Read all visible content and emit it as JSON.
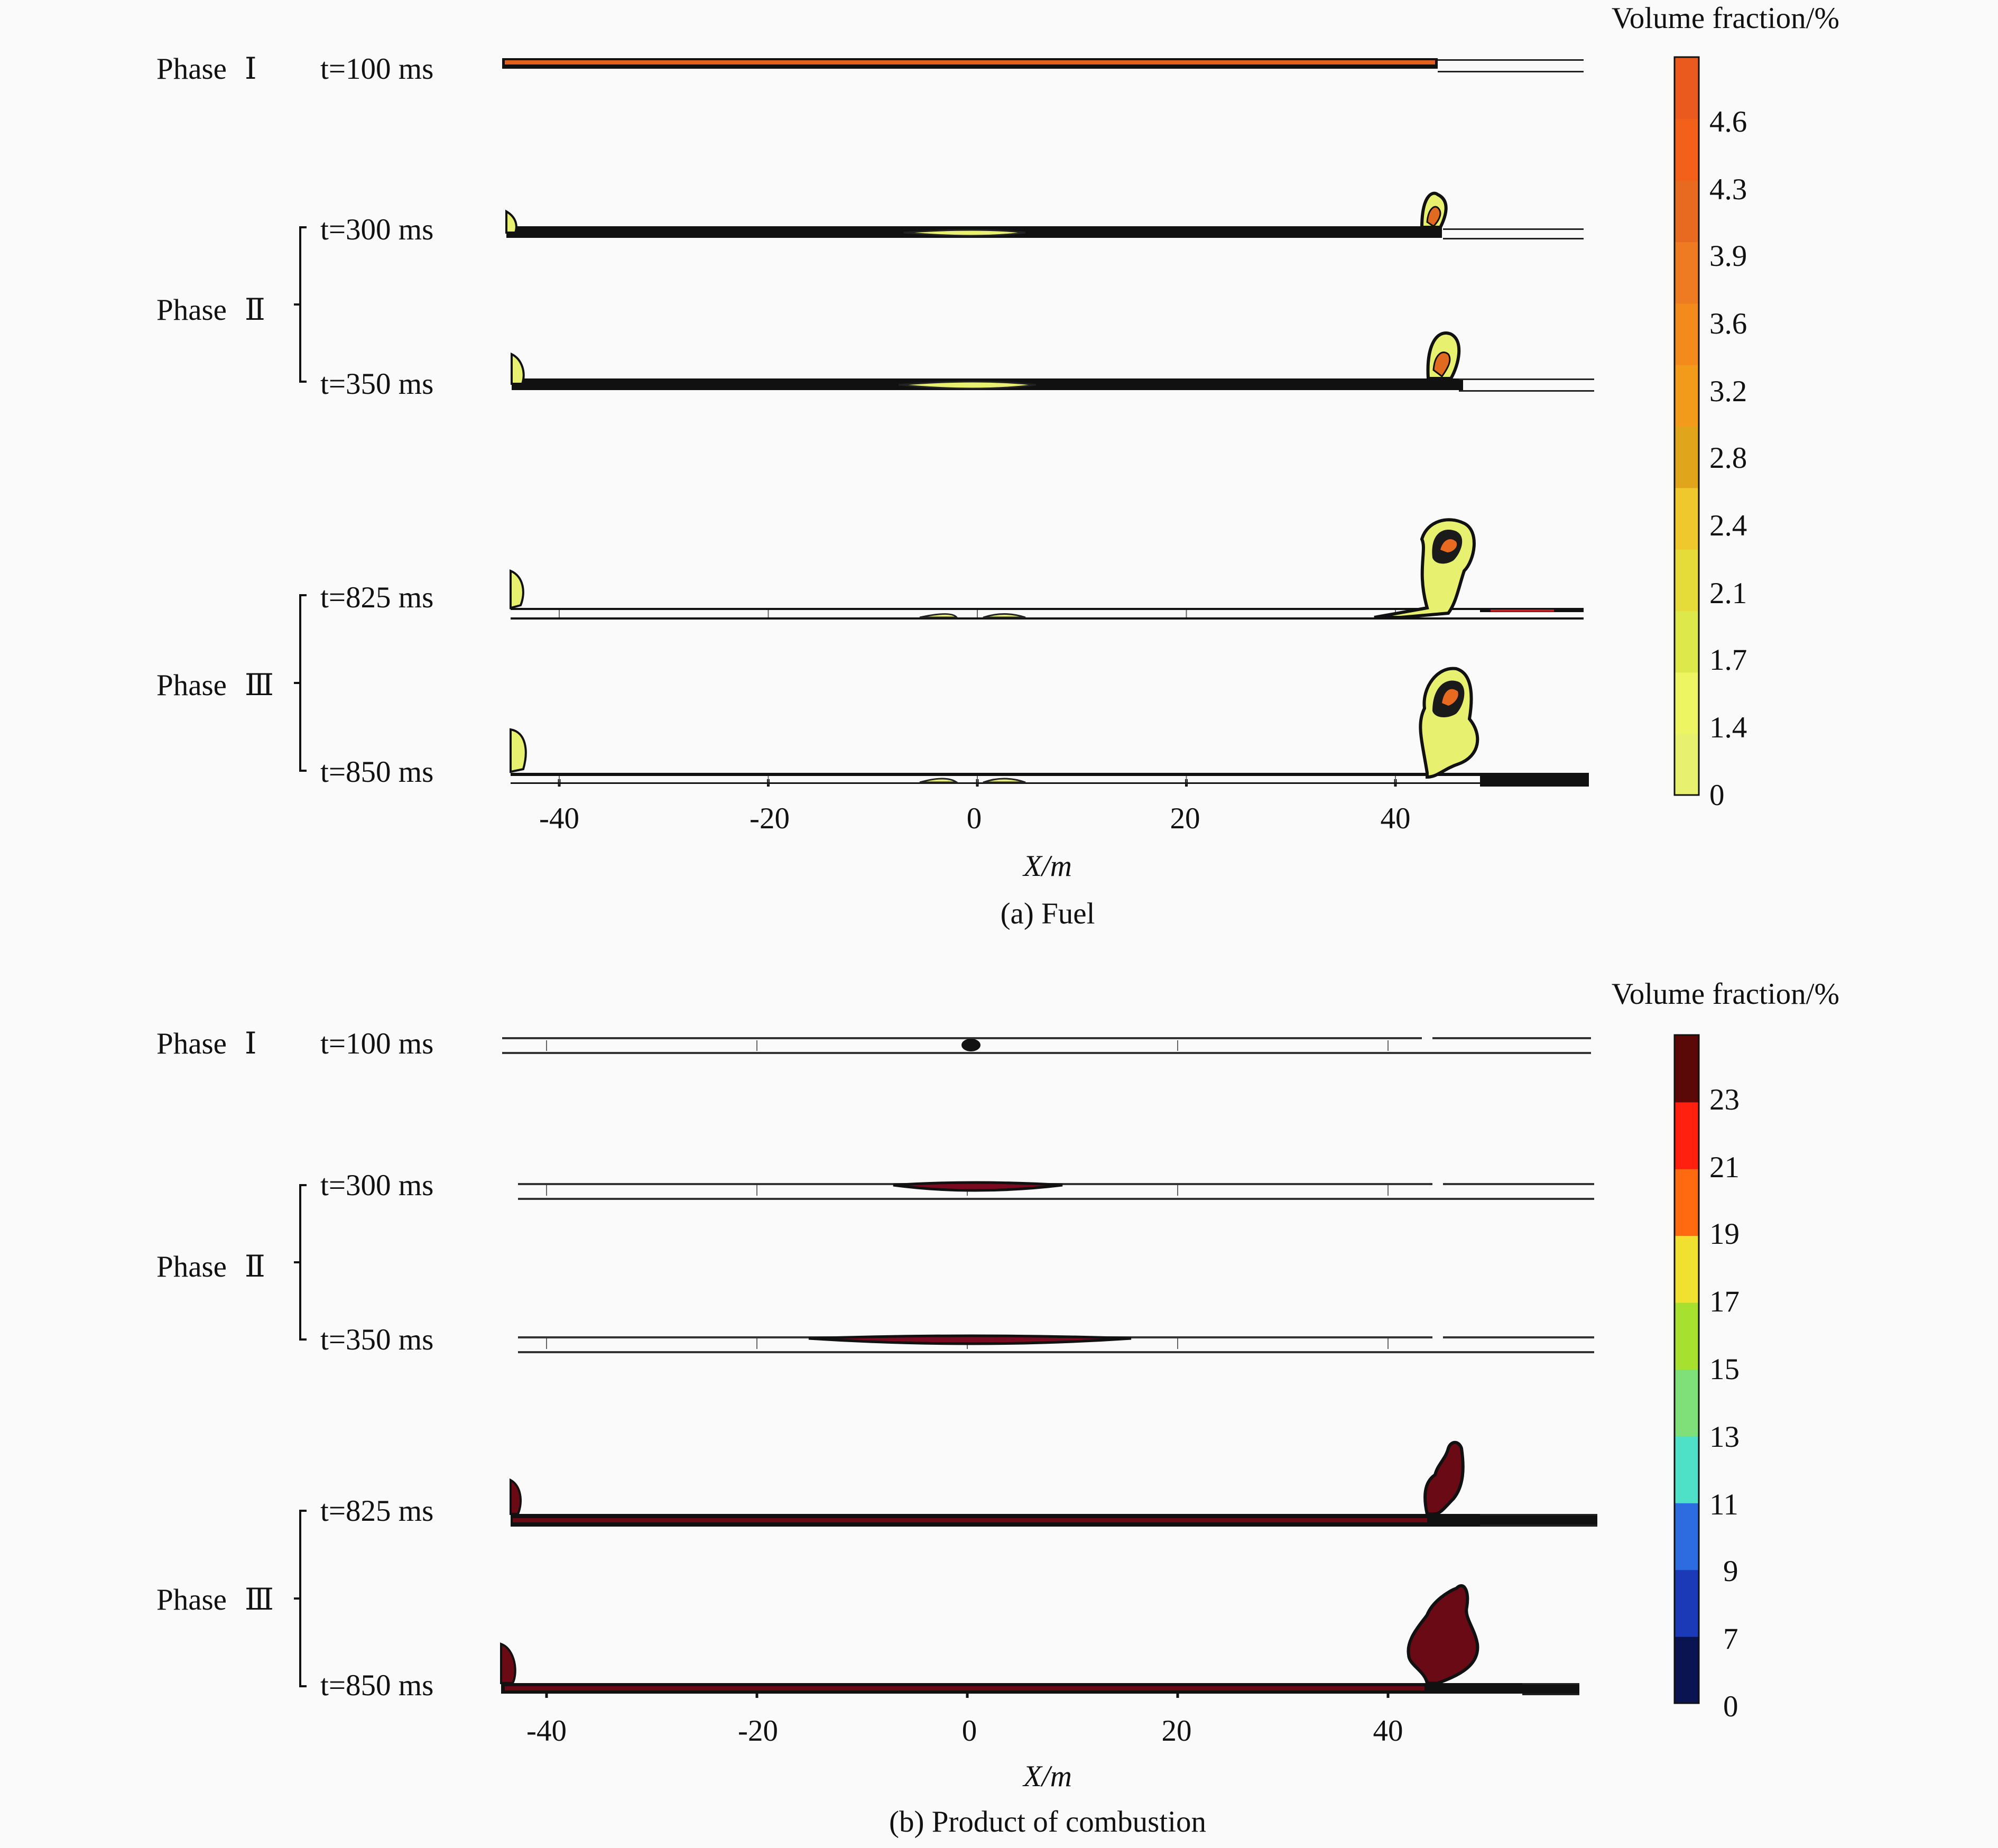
{
  "chart_data": [
    {
      "type": "heatmap",
      "caption": "(a) Fuel",
      "colorbar": {
        "title": "Volume fraction/%",
        "ticks": [
          "0",
          "1.4",
          "1.7",
          "2.1",
          "2.4",
          "2.8",
          "3.2",
          "3.6",
          "3.9",
          "4.3",
          "4.6"
        ],
        "colors": [
          "#e8f070",
          "#eef562",
          "#dde84a",
          "#e5dc3a",
          "#efc82e",
          "#e0a51a",
          "#f29b1a",
          "#f28a1c",
          "#ee7a22",
          "#e86a20",
          "#f2601a",
          "#ea5a1e"
        ]
      },
      "xlabel": "X/m",
      "xticks": [
        -40,
        -20,
        0,
        20,
        40
      ],
      "xlim": [
        -44,
        58
      ],
      "phases": [
        {
          "name": "Phase",
          "numeral": "Ⅰ",
          "times": [
            "t=100 ms"
          ]
        },
        {
          "name": "Phase",
          "numeral": "Ⅱ",
          "times": [
            "t=300 ms",
            "t=350 ms"
          ]
        },
        {
          "name": "Phase",
          "numeral": "Ⅲ",
          "times": [
            "t=825 ms",
            "t=850 ms"
          ]
        }
      ]
    },
    {
      "type": "heatmap",
      "caption": "(b)  Product of combustion",
      "colorbar": {
        "title": "Volume fraction/%",
        "ticks": [
          "0",
          "7",
          "9",
          "11",
          "13",
          "15",
          "17",
          "19",
          "21",
          "23"
        ],
        "colors": [
          "#0a1450",
          "#1a3ab8",
          "#2d6be0",
          "#4fe0c8",
          "#7fe07a",
          "#a8e030",
          "#f0e030",
          "#ff6a10",
          "#ff2010",
          "#5a0808"
        ]
      },
      "xlabel": "X/m",
      "xticks": [
        -40,
        -20,
        0,
        20,
        40
      ],
      "xlim": [
        -44,
        58
      ],
      "phases": [
        {
          "name": "Phase",
          "numeral": "Ⅰ",
          "times": [
            "t=100 ms"
          ]
        },
        {
          "name": "Phase",
          "numeral": "Ⅱ",
          "times": [
            "t=300 ms",
            "t=350 ms"
          ]
        },
        {
          "name": "Phase",
          "numeral": "Ⅲ",
          "times": [
            "t=825 ms",
            "t=850 ms"
          ]
        }
      ]
    }
  ]
}
